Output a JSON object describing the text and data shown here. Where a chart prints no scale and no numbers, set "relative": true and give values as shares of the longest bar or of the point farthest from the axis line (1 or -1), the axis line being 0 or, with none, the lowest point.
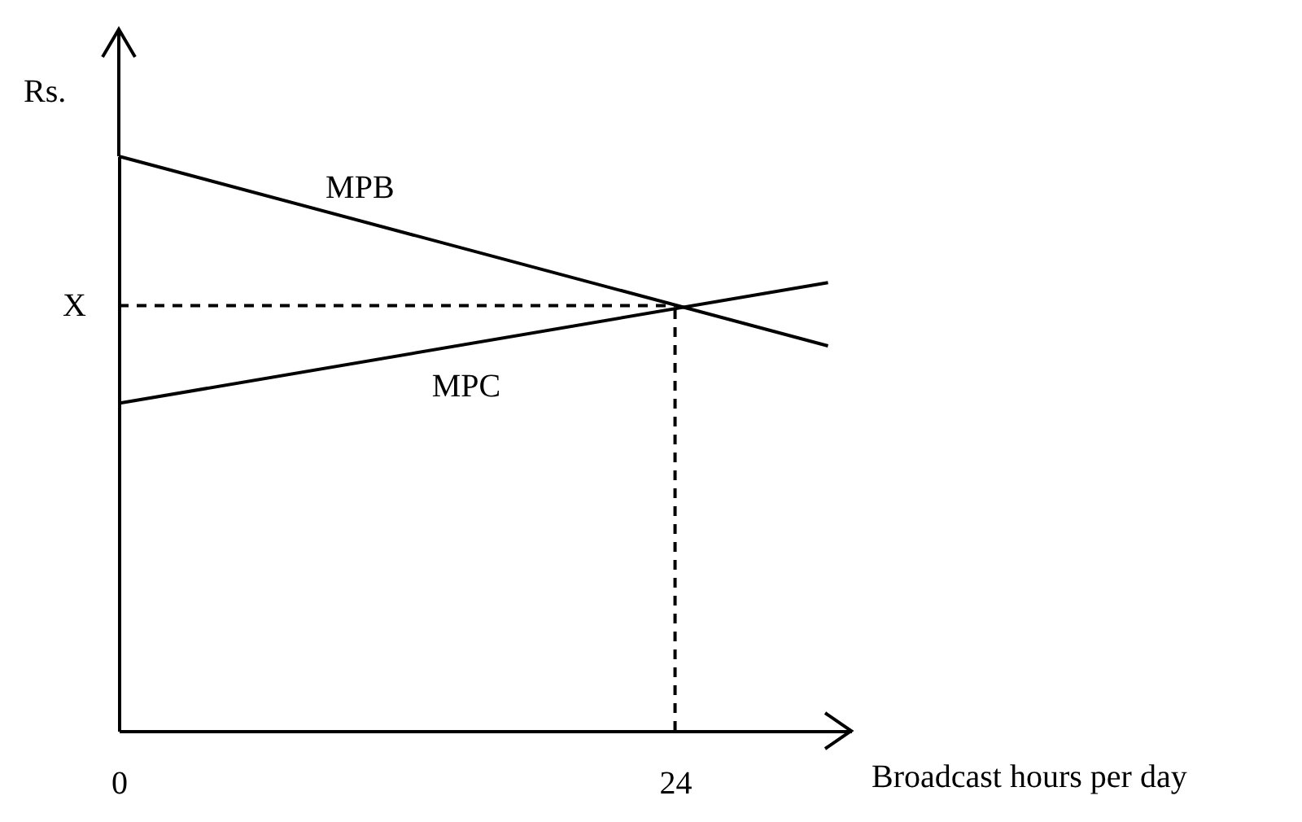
{
  "chart_data": {
    "type": "line",
    "relative": true,
    "xlabel": "Broadcast hours per day",
    "ylabel": "Rs.",
    "x": [
      0,
      30.6
    ],
    "xlim": [
      0,
      31.6
    ],
    "xticks": [
      0,
      24
    ],
    "grid": false,
    "line_style": "solid",
    "series": [
      {
        "name": "MPB",
        "color": "#000000",
        "values": [
          1,
          0.67
        ]
      },
      {
        "name": "MPC",
        "color": "#000000",
        "values": [
          0.57,
          0.78
        ]
      }
    ],
    "ref_lines": [
      {
        "axis": "y",
        "value": 0.74,
        "label": "X",
        "color": "#000000",
        "line_style": "dashed"
      },
      {
        "axis": "x",
        "value": 24,
        "color": "#000000",
        "line_style": "dashed"
      }
    ]
  }
}
